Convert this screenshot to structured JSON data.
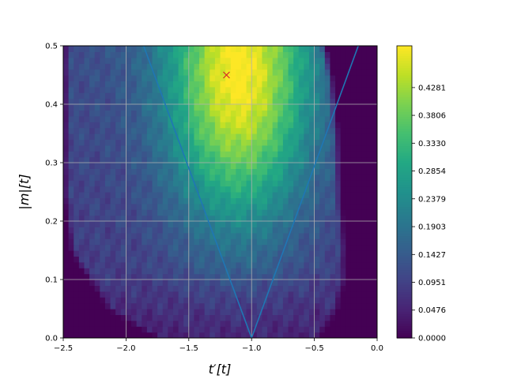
{
  "chart_data": {
    "type": "heatmap",
    "title": "",
    "xlabel": "t′[t]",
    "ylabel": "|m|[t]",
    "xlim": [
      -2.5,
      0.0
    ],
    "ylim": [
      0.0,
      0.5
    ],
    "xticks": [
      "−2.5",
      "−2.0",
      "−1.5",
      "−1.0",
      "−0.5",
      "0.0"
    ],
    "xtick_values": [
      -2.5,
      -2.0,
      -1.5,
      -1.0,
      -0.5,
      0.0
    ],
    "yticks": [
      "0.0",
      "0.1",
      "0.2",
      "0.3",
      "0.4",
      "0.5"
    ],
    "ytick_values": [
      0.0,
      0.1,
      0.2,
      0.3,
      0.4,
      0.5
    ],
    "grid": true,
    "colormap": "viridis",
    "colorbar": {
      "vmin": 0.0,
      "vmax": 0.4995,
      "ticks": [
        "0.0000",
        "0.0476",
        "0.0951",
        "0.1427",
        "0.1903",
        "0.2379",
        "0.2854",
        "0.3330",
        "0.3806",
        "0.4281"
      ],
      "tick_values": [
        0.0,
        0.0476,
        0.0951,
        0.1427,
        0.1903,
        0.2379,
        0.2854,
        0.333,
        0.3806,
        0.4281
      ]
    },
    "lines": [
      {
        "x": [
          -1.86,
          -1.0,
          -0.15
        ],
        "y": [
          0.5,
          0.0,
          0.5
        ],
        "color": "#1f77b4"
      }
    ],
    "markers": [
      {
        "x": -1.2,
        "y": 0.45,
        "symbol": "x",
        "color": "#d62728"
      }
    ],
    "field": {
      "x_boundary": [
        {
          "y": 0.0,
          "xmin": -1.75,
          "xmax": -0.45
        },
        {
          "y": 0.05,
          "xmin": -2.15,
          "xmax": -0.3
        },
        {
          "y": 0.1,
          "xmin": -2.3,
          "xmax": -0.25
        },
        {
          "y": 0.15,
          "xmin": -2.45,
          "xmax": -0.25
        },
        {
          "y": 0.25,
          "xmin": -2.5,
          "xmax": -0.28
        },
        {
          "y": 0.35,
          "xmin": -2.5,
          "xmax": -0.3
        },
        {
          "y": 0.45,
          "xmin": -2.5,
          "xmax": -0.35
        },
        {
          "y": 0.5,
          "xmin": -2.5,
          "xmax": -0.4
        }
      ],
      "peak": {
        "x": -1.1,
        "y": 0.45,
        "value": 0.47
      }
    }
  },
  "colors": {
    "line": "#1f77b4",
    "marker": "#d62728",
    "grid": "#b0b0b0"
  }
}
